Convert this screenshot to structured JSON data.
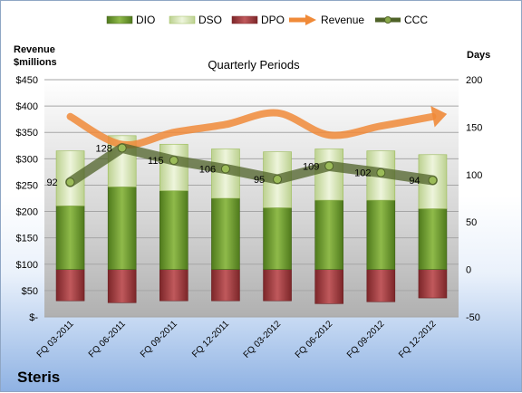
{
  "chart_data": {
    "type": "bar",
    "title": "Quarterly Periods",
    "company": "Steris",
    "y_left_label_line1": "Revenue",
    "y_left_label_line2": "$millions",
    "y_right_label": "Days",
    "y_left_ticks": [
      "$-",
      "$50",
      "$100",
      "$150",
      "$200",
      "$250",
      "$300",
      "$350",
      "$400",
      "$450"
    ],
    "y_left_ylim": [
      0,
      450
    ],
    "y_right_ticks": [
      "-50",
      "0",
      "50",
      "100",
      "150",
      "200"
    ],
    "y_right_ylim": [
      -50,
      200
    ],
    "grid": true,
    "legend_position": "top",
    "categories": [
      "FQ 03-2011",
      "FQ 06-2011",
      "FQ 09-2011",
      "FQ 12-2011",
      "FQ 03-2012",
      "FQ 06-2012",
      "FQ 09-2012",
      "FQ 12-2012"
    ],
    "legend": [
      {
        "name": "DIO",
        "color": "#77a23a",
        "kind": "bar"
      },
      {
        "name": "DSO",
        "color": "#d7e4bd",
        "kind": "bar"
      },
      {
        "name": "DPO",
        "color": "#b0484c",
        "kind": "bar"
      },
      {
        "name": "Revenue",
        "color": "#f08a38",
        "kind": "arrow"
      },
      {
        "name": "CCC",
        "color": "#4f6228",
        "kind": "line"
      }
    ],
    "series": [
      {
        "name": "DIO",
        "axis": "right",
        "values": [
          67,
          87,
          83,
          75,
          65,
          73,
          73,
          64
        ]
      },
      {
        "name": "DSO",
        "axis": "right",
        "values": [
          58,
          54,
          49,
          52,
          59,
          54,
          52,
          57
        ]
      },
      {
        "name": "DPO",
        "axis": "right",
        "values": [
          -33,
          -35,
          -33,
          -33,
          -33,
          -36,
          -34,
          -30
        ]
      },
      {
        "name": "Revenue",
        "axis": "left",
        "values": [
          380,
          327,
          350,
          365,
          387,
          345,
          362,
          380
        ]
      },
      {
        "name": "CCC",
        "axis": "right",
        "values": [
          92,
          128,
          115,
          106,
          95,
          109,
          102,
          94
        ],
        "labels": [
          "92",
          "128",
          "115",
          "106",
          "95",
          "109",
          "102",
          "94"
        ]
      }
    ]
  }
}
